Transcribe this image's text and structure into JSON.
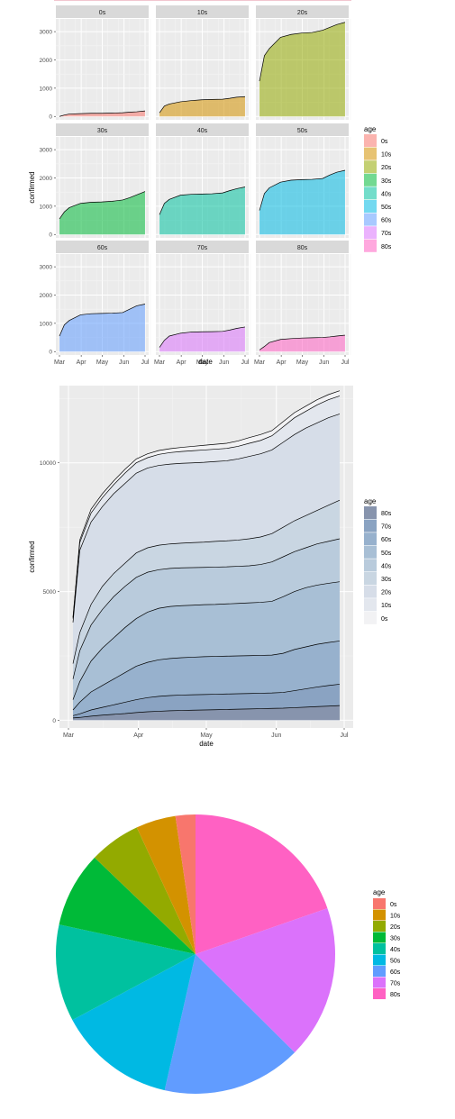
{
  "colors": {
    "panel_bg": "#ebebeb",
    "strip_bg": "#d9d9d9",
    "grid_major": "#ffffff",
    "grid_minor": "#f4f4f4",
    "axis_text": "#4d4d4d",
    "stroke": "#000000",
    "age_palette": {
      "0s": "#F8766D",
      "10s": "#D39200",
      "20s": "#93AA00",
      "30s": "#00BA38",
      "40s": "#00C19F",
      "50s": "#00B9E3",
      "60s": "#619CFF",
      "70s": "#DB72FB",
      "80s": "#FF61C3"
    },
    "stack_palette": {
      "0s": "#f2f2f4",
      "10s": "#e3e7ee",
      "20s": "#d6dde8",
      "30s": "#c9d6e2",
      "40s": "#b9cbdc",
      "50s": "#a8bfd5",
      "60s": "#97b1cd",
      "70s": "#8aa3c2",
      "80s": "#8794ad"
    }
  },
  "chart_data": [
    {
      "type": "area",
      "facet": true,
      "xlabel": "date",
      "ylabel": "confirmed",
      "x_ticks": [
        "Mar",
        "Apr",
        "May",
        "Jun",
        "Jul"
      ],
      "x_dates": [
        "2020-03-01",
        "2020-04-01",
        "2020-05-01",
        "2020-06-01",
        "2020-07-01"
      ],
      "ylim": [
        0,
        3300
      ],
      "y_ticks": [
        0,
        1000,
        2000,
        3000
      ],
      "grid": true,
      "legend": {
        "title": "age",
        "position": "right",
        "entries": [
          "0s",
          "10s",
          "20s",
          "30s",
          "40s",
          "50s",
          "60s",
          "70s",
          "80s"
        ]
      },
      "series": [
        {
          "name": "0s",
          "values": [
            0,
            50,
            85,
            100,
            110,
            112,
            118,
            130,
            150,
            165,
            195
          ]
        },
        {
          "name": "10s",
          "values": [
            130,
            370,
            440,
            520,
            560,
            590,
            600,
            610,
            640,
            680,
            700
          ]
        },
        {
          "name": "20s",
          "values": [
            1250,
            2150,
            2400,
            2800,
            2900,
            2950,
            2970,
            3050,
            3150,
            3250,
            3330
          ]
        },
        {
          "name": "30s",
          "values": [
            550,
            800,
            950,
            1100,
            1140,
            1150,
            1175,
            1220,
            1300,
            1400,
            1520
          ]
        },
        {
          "name": "40s",
          "values": [
            700,
            1100,
            1240,
            1390,
            1420,
            1430,
            1440,
            1470,
            1550,
            1620,
            1680
          ]
        },
        {
          "name": "50s",
          "values": [
            850,
            1450,
            1650,
            1850,
            1920,
            1940,
            1950,
            1980,
            2100,
            2200,
            2270
          ]
        },
        {
          "name": "60s",
          "values": [
            550,
            950,
            1100,
            1300,
            1340,
            1350,
            1360,
            1380,
            1500,
            1620,
            1680
          ]
        },
        {
          "name": "70s",
          "values": [
            150,
            400,
            550,
            650,
            690,
            700,
            705,
            715,
            760,
            820,
            870
          ]
        },
        {
          "name": "80s",
          "values": [
            60,
            180,
            320,
            430,
            460,
            480,
            490,
            500,
            520,
            550,
            580
          ]
        }
      ],
      "x_days": [
        0,
        7,
        14,
        30,
        45,
        60,
        75,
        90,
        100,
        110,
        122
      ]
    },
    {
      "type": "area",
      "stacked": true,
      "xlabel": "date",
      "ylabel": "confirmed",
      "x_ticks": [
        "Mar",
        "Apr",
        "May",
        "Jun",
        "Jul"
      ],
      "x_dates": [
        "2020-03-01",
        "2020-04-01",
        "2020-05-01",
        "2020-06-01",
        "2020-07-01"
      ],
      "ylim": [
        -300,
        13000
      ],
      "y_ticks": [
        0,
        5000,
        10000
      ],
      "grid": true,
      "legend": {
        "title": "age",
        "position": "right",
        "entries": [
          "80s",
          "70s",
          "60s",
          "50s",
          "40s",
          "30s",
          "20s",
          "10s",
          "0s"
        ]
      },
      "x_days": [
        2,
        5,
        10,
        15,
        20,
        25,
        30,
        35,
        40,
        45,
        50,
        55,
        60,
        65,
        70,
        75,
        80,
        85,
        90,
        95,
        100,
        105,
        110,
        115,
        120
      ],
      "cumulative_boundaries": [
        {
          "name": "80s",
          "values": [
            90,
            110,
            160,
            200,
            230,
            260,
            300,
            330,
            350,
            370,
            380,
            390,
            400,
            410,
            420,
            430,
            440,
            450,
            460,
            470,
            490,
            510,
            530,
            550,
            570
          ]
        },
        {
          "name": "70s",
          "values": [
            180,
            250,
            400,
            500,
            600,
            700,
            800,
            880,
            930,
            960,
            980,
            990,
            1000,
            1010,
            1020,
            1030,
            1040,
            1050,
            1060,
            1080,
            1150,
            1220,
            1290,
            1350,
            1400
          ]
        },
        {
          "name": "60s",
          "values": [
            400,
            700,
            1100,
            1350,
            1600,
            1850,
            2100,
            2250,
            2350,
            2400,
            2430,
            2450,
            2470,
            2480,
            2490,
            2500,
            2510,
            2520,
            2530,
            2600,
            2750,
            2850,
            2950,
            3020,
            3080
          ]
        },
        {
          "name": "50s",
          "values": [
            800,
            1500,
            2300,
            2800,
            3200,
            3600,
            3950,
            4200,
            4350,
            4420,
            4450,
            4470,
            4490,
            4500,
            4520,
            4540,
            4560,
            4580,
            4620,
            4800,
            5000,
            5150,
            5250,
            5320,
            5380
          ]
        },
        {
          "name": "40s",
          "values": [
            1600,
            2700,
            3700,
            4300,
            4800,
            5200,
            5550,
            5750,
            5850,
            5900,
            5920,
            5930,
            5940,
            5950,
            5960,
            5980,
            6000,
            6050,
            6150,
            6350,
            6550,
            6700,
            6850,
            6950,
            7050
          ]
        },
        {
          "name": "30s",
          "values": [
            2200,
            3400,
            4500,
            5200,
            5700,
            6100,
            6500,
            6700,
            6800,
            6850,
            6880,
            6900,
            6920,
            6950,
            6970,
            7000,
            7050,
            7120,
            7250,
            7500,
            7750,
            7950,
            8150,
            8350,
            8550
          ]
        },
        {
          "name": "20s",
          "values": [
            3800,
            6600,
            7700,
            8300,
            8800,
            9200,
            9600,
            9800,
            9900,
            9950,
            9980,
            10000,
            10020,
            10050,
            10080,
            10150,
            10250,
            10350,
            10500,
            10800,
            11100,
            11350,
            11550,
            11750,
            11900
          ]
        },
        {
          "name": "10s",
          "values": [
            3950,
            6900,
            8050,
            8650,
            9150,
            9600,
            10000,
            10200,
            10330,
            10400,
            10440,
            10470,
            10500,
            10530,
            10560,
            10640,
            10760,
            10870,
            11050,
            11400,
            11750,
            12000,
            12250,
            12450,
            12600
          ]
        },
        {
          "name": "0s",
          "values": [
            4000,
            7000,
            8200,
            8800,
            9300,
            9750,
            10150,
            10350,
            10480,
            10550,
            10600,
            10640,
            10680,
            10720,
            10760,
            10850,
            10980,
            11100,
            11250,
            11600,
            11950,
            12200,
            12450,
            12650,
            12800
          ]
        }
      ]
    },
    {
      "type": "pie",
      "legend": {
        "title": "age",
        "position": "right",
        "entries": [
          "0s",
          "10s",
          "20s",
          "30s",
          "40s",
          "50s",
          "60s",
          "70s",
          "80s"
        ]
      },
      "slices": [
        {
          "name": "80s",
          "value": 20.5
        },
        {
          "name": "70s",
          "value": 18.5
        },
        {
          "name": "60s",
          "value": 16.8
        },
        {
          "name": "50s",
          "value": 14.2
        },
        {
          "name": "40s",
          "value": 11.7
        },
        {
          "name": "30s",
          "value": 9.1
        },
        {
          "name": "20s",
          "value": 6.2
        },
        {
          "name": "10s",
          "value": 4.8
        },
        {
          "name": "0s",
          "value": 2.4
        }
      ]
    }
  ]
}
